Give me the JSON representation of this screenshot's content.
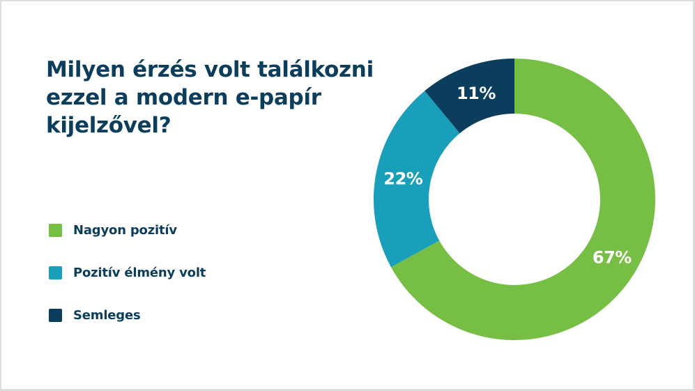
{
  "slide": {
    "title": "Milyen érzés volt találkozni ezzel a modern e-papír kijelzővel?"
  },
  "legend": [
    {
      "label": "Nagyon pozitív",
      "color": "#76bf44"
    },
    {
      "label": "Pozitív élmény volt",
      "color": "#1a9fbb"
    },
    {
      "label": "Semleges",
      "color": "#0b3d5c"
    }
  ],
  "colors": {
    "title_text": "#0b3d5c",
    "legend_text": "#0b3d5c",
    "slice_label": "#ffffff",
    "background": "#ffffff"
  },
  "chart_data": {
    "type": "pie",
    "subtype": "donut",
    "title": "Milyen érzés volt találkozni ezzel a modern e-papír kijelzővel?",
    "categories": [
      "Nagyon pozitív",
      "Pozitív élmény volt",
      "Semleges"
    ],
    "values": [
      67,
      22,
      11
    ],
    "labels": [
      "67%",
      "22%",
      "11%"
    ],
    "unit": "%",
    "colors": [
      "#76bf44",
      "#1a9fbb",
      "#0b3d5c"
    ],
    "start_angle": "12 o'clock, clockwise",
    "legend_position": "left"
  }
}
